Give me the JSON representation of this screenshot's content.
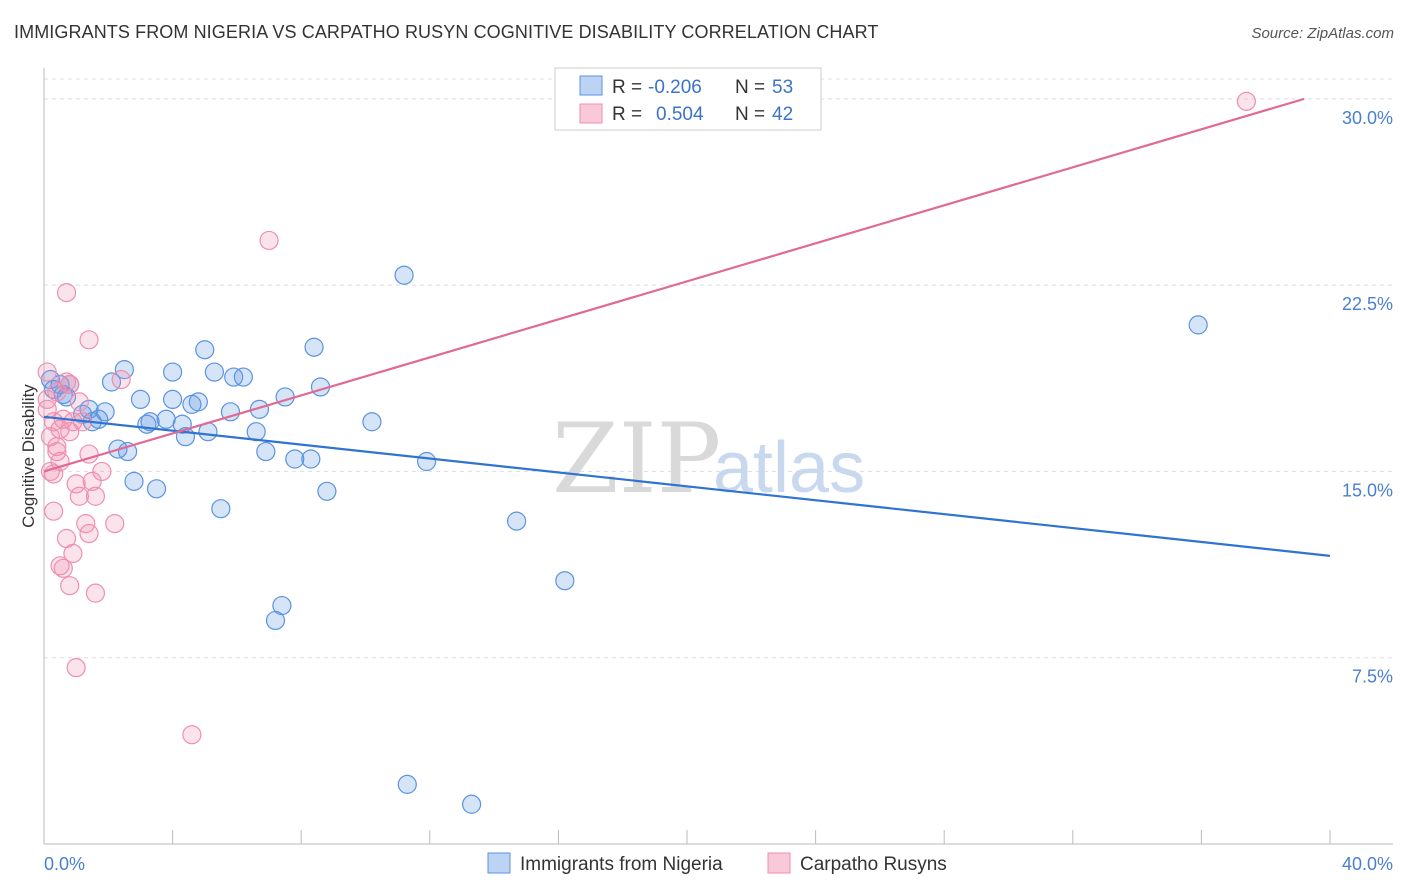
{
  "title": "IMMIGRANTS FROM NIGERIA VS CARPATHO RUSYN COGNITIVE DISABILITY CORRELATION CHART",
  "source": "Source: ZipAtlas.com",
  "watermark": {
    "zip": "ZIP",
    "atlas": "atlas"
  },
  "colors": {
    "blue": "#5b93e0",
    "blue_line": "#2f74d0",
    "pink": "#ef8fb0",
    "pink_line": "#e06a94",
    "grid": "#dddddd",
    "tick_text": "#4a7fcf"
  },
  "legend": {
    "rows": [
      {
        "r_label": "R =",
        "r_value": "-0.206",
        "n_label": "N =",
        "n_value": "53"
      },
      {
        "r_label": "R =",
        "r_value": "0.504",
        "n_label": "N =",
        "n_value": "42"
      }
    ]
  },
  "chart_data": {
    "type": "scatter",
    "title": "IMMIGRANTS FROM NIGERIA VS CARPATHO RUSYN COGNITIVE DISABILITY CORRELATION CHART",
    "xlabel": "",
    "ylabel": "Cognitive Disability",
    "xlim": [
      0,
      40
    ],
    "ylim": [
      0,
      30.8
    ],
    "x_tick_labels": [
      "0.0%",
      "40.0%"
    ],
    "y_ticks": [
      7.5,
      15.0,
      22.5,
      30.0
    ],
    "y_tick_labels": [
      "7.5%",
      "15.0%",
      "22.5%",
      "30.0%"
    ],
    "grid": true,
    "series": [
      {
        "name": "Immigrants from Nigeria",
        "color": "#5b93e0",
        "trend": {
          "x": [
            0,
            40
          ],
          "y": [
            17.2,
            11.6
          ]
        },
        "points": [
          [
            0.2,
            18.7
          ],
          [
            0.3,
            18.3
          ],
          [
            0.5,
            18.5
          ],
          [
            0.6,
            18.1
          ],
          [
            0.8,
            18.5
          ],
          [
            0.7,
            18.0
          ],
          [
            1.2,
            17.3
          ],
          [
            1.4,
            17.5
          ],
          [
            1.5,
            17.0
          ],
          [
            1.7,
            17.1
          ],
          [
            1.9,
            17.4
          ],
          [
            2.1,
            18.6
          ],
          [
            2.3,
            15.9
          ],
          [
            2.5,
            19.1
          ],
          [
            2.6,
            15.8
          ],
          [
            2.8,
            14.6
          ],
          [
            3.0,
            17.9
          ],
          [
            3.2,
            16.9
          ],
          [
            3.3,
            17.0
          ],
          [
            3.5,
            14.3
          ],
          [
            3.8,
            17.1
          ],
          [
            4.0,
            19.0
          ],
          [
            4.0,
            17.9
          ],
          [
            4.3,
            16.9
          ],
          [
            4.4,
            16.4
          ],
          [
            4.6,
            17.7
          ],
          [
            4.8,
            17.8
          ],
          [
            5.0,
            19.9
          ],
          [
            5.1,
            16.6
          ],
          [
            5.3,
            19.0
          ],
          [
            5.5,
            13.5
          ],
          [
            5.8,
            17.4
          ],
          [
            5.9,
            18.8
          ],
          [
            6.2,
            18.8
          ],
          [
            6.6,
            16.6
          ],
          [
            6.7,
            17.5
          ],
          [
            6.9,
            15.8
          ],
          [
            7.4,
            9.6
          ],
          [
            7.2,
            9.0
          ],
          [
            7.5,
            18.0
          ],
          [
            7.8,
            15.5
          ],
          [
            8.3,
            15.5
          ],
          [
            8.4,
            20.0
          ],
          [
            8.6,
            18.4
          ],
          [
            8.8,
            14.2
          ],
          [
            10.2,
            17.0
          ],
          [
            11.2,
            22.9
          ],
          [
            11.9,
            15.4
          ],
          [
            11.3,
            2.4
          ],
          [
            13.3,
            1.6
          ],
          [
            14.7,
            13.0
          ],
          [
            16.2,
            10.6
          ],
          [
            35.9,
            20.9
          ]
        ]
      },
      {
        "name": "Carpatho Rusyns",
        "color": "#ef8fb0",
        "trend": {
          "x": [
            0,
            39.2
          ],
          "y": [
            15.0,
            30.0
          ]
        },
        "points": [
          [
            0.1,
            19.0
          ],
          [
            0.1,
            17.9
          ],
          [
            0.1,
            17.5
          ],
          [
            0.2,
            16.4
          ],
          [
            0.2,
            15.0
          ],
          [
            0.3,
            14.9
          ],
          [
            0.3,
            13.4
          ],
          [
            0.3,
            17.0
          ],
          [
            0.4,
            15.8
          ],
          [
            0.4,
            16.0
          ],
          [
            0.5,
            16.7
          ],
          [
            0.5,
            11.2
          ],
          [
            0.5,
            15.4
          ],
          [
            0.6,
            17.1
          ],
          [
            0.6,
            11.1
          ],
          [
            0.7,
            18.6
          ],
          [
            0.7,
            12.3
          ],
          [
            0.8,
            16.6
          ],
          [
            0.8,
            10.4
          ],
          [
            0.9,
            11.7
          ],
          [
            0.9,
            17.0
          ],
          [
            1.0,
            14.5
          ],
          [
            1.0,
            7.1
          ],
          [
            1.1,
            17.8
          ],
          [
            1.1,
            14.0
          ],
          [
            1.3,
            12.9
          ],
          [
            1.4,
            15.7
          ],
          [
            1.4,
            12.5
          ],
          [
            1.5,
            14.6
          ],
          [
            1.6,
            14.0
          ],
          [
            1.8,
            15.0
          ],
          [
            2.2,
            12.9
          ],
          [
            2.4,
            18.7
          ],
          [
            0.7,
            22.2
          ],
          [
            1.4,
            20.3
          ],
          [
            1.6,
            10.1
          ],
          [
            4.6,
            4.4
          ],
          [
            7.0,
            24.3
          ],
          [
            37.4,
            29.9
          ],
          [
            0.8,
            18.5
          ],
          [
            0.4,
            18.2
          ],
          [
            1.2,
            17.0
          ]
        ]
      }
    ]
  },
  "bottom_legend": [
    "Immigrants from Nigeria",
    "Carpatho Rusyns"
  ]
}
